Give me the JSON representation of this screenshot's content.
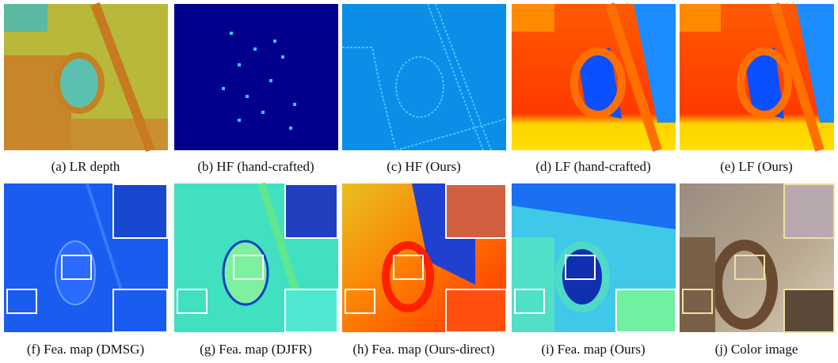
{
  "panels": [
    {
      "caption": "(a) LR depth"
    },
    {
      "caption": "(b) HF (hand-crafted)"
    },
    {
      "caption": "(c) HF (Ours)"
    },
    {
      "caption": "(d) LF (hand-crafted)"
    },
    {
      "caption": "(e) LF (Ours)"
    },
    {
      "caption": "(f) Fea. map (DMSG)"
    },
    {
      "caption": "(g) Fea. map (DJFR)"
    },
    {
      "caption": "(h) Fea. map (Ours-direct)"
    },
    {
      "caption": "(i) Fea. map (Ours)"
    },
    {
      "caption": "(j) Color image"
    }
  ]
}
